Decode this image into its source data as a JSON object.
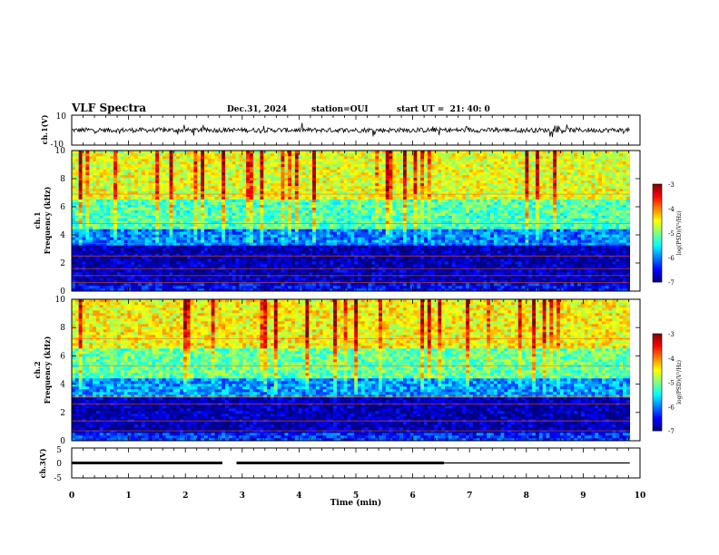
{
  "header": {
    "title": "VLF Spectra",
    "date": "Dec.31, 2024",
    "station": "station=OUI",
    "start": "start UT =  21: 40: 0"
  },
  "chart_data": {
    "type": "heatmap",
    "title": "VLF Spectra",
    "xlabel": "Time (min)",
    "xlim": [
      0,
      10
    ],
    "x_ticks": [
      "0",
      "1",
      "2",
      "3",
      "4",
      "5",
      "6",
      "7",
      "8",
      "9",
      "10"
    ],
    "data_end_min": 9.82,
    "panels": [
      {
        "id": "ch1-waveform",
        "type": "line",
        "ylabel": "ch.1(V)",
        "ylim": [
          -10,
          10
        ],
        "y_ticks": [
          "10",
          "-10"
        ],
        "signal_center_v": 0,
        "signal_amplitude_v": 3.5
      },
      {
        "id": "ch1-spectrogram",
        "type": "heatmap",
        "ylabel": "ch.1\nFrequency (kHz)",
        "ylim": [
          0,
          10
        ],
        "y_ticks": [
          "0",
          "2",
          "4",
          "6",
          "8",
          "10"
        ],
        "colorbar": {
          "label": "log(PSD)(V²/Hz)",
          "range": [
            -7,
            -3
          ],
          "ticks": [
            "-3",
            "-4",
            "-5",
            "-6",
            "-7"
          ]
        },
        "bands": [
          {
            "f_khz": [
              0,
              0.6
            ],
            "log_psd": -6.5
          },
          {
            "f_khz": [
              0.6,
              3.2
            ],
            "log_psd": -6.8
          },
          {
            "f_khz": [
              3.2,
              4.5
            ],
            "log_psd": -6.0
          },
          {
            "f_khz": [
              4.5,
              6.5
            ],
            "log_psd": -5.2
          },
          {
            "f_khz": [
              6.5,
              10
            ],
            "log_psd": -4.6
          }
        ],
        "tones_khz": [
          0.6,
          1.1,
          1.6,
          2.5,
          3.4,
          4.8,
          6.9
        ]
      },
      {
        "id": "ch2-spectrogram",
        "type": "heatmap",
        "ylabel": "ch.2\nFrequency (kHz)",
        "ylim": [
          0,
          10
        ],
        "y_ticks": [
          "0",
          "2",
          "4",
          "6",
          "8",
          "10"
        ],
        "colorbar": {
          "label": "log(PSD)(V²/Hz)",
          "range": [
            -7,
            -3
          ],
          "ticks": [
            "-3",
            "-4",
            "-5",
            "-6",
            "-7"
          ]
        },
        "bands": [
          {
            "f_khz": [
              0,
              0.6
            ],
            "log_psd": -6.3
          },
          {
            "f_khz": [
              0.6,
              3.0
            ],
            "log_psd": -6.8
          },
          {
            "f_khz": [
              3.0,
              4.5
            ],
            "log_psd": -5.9
          },
          {
            "f_khz": [
              4.5,
              6.5
            ],
            "log_psd": -5.1
          },
          {
            "f_khz": [
              6.5,
              10
            ],
            "log_psd": -4.5
          }
        ],
        "tones_khz": [
          0.7,
          1.4,
          2.6,
          3.1,
          5.3,
          7.2
        ]
      },
      {
        "id": "ch3-line",
        "type": "line",
        "ylabel": "ch.3(V)",
        "ylim": [
          -5,
          5
        ],
        "y_ticks": [
          "5",
          "0",
          "-5"
        ],
        "value_v": 0,
        "segments_min": [
          [
            0,
            2.65
          ],
          [
            2.9,
            6.55
          ]
        ],
        "thin_segment_min": [
          6.55,
          9.82
        ]
      }
    ]
  }
}
